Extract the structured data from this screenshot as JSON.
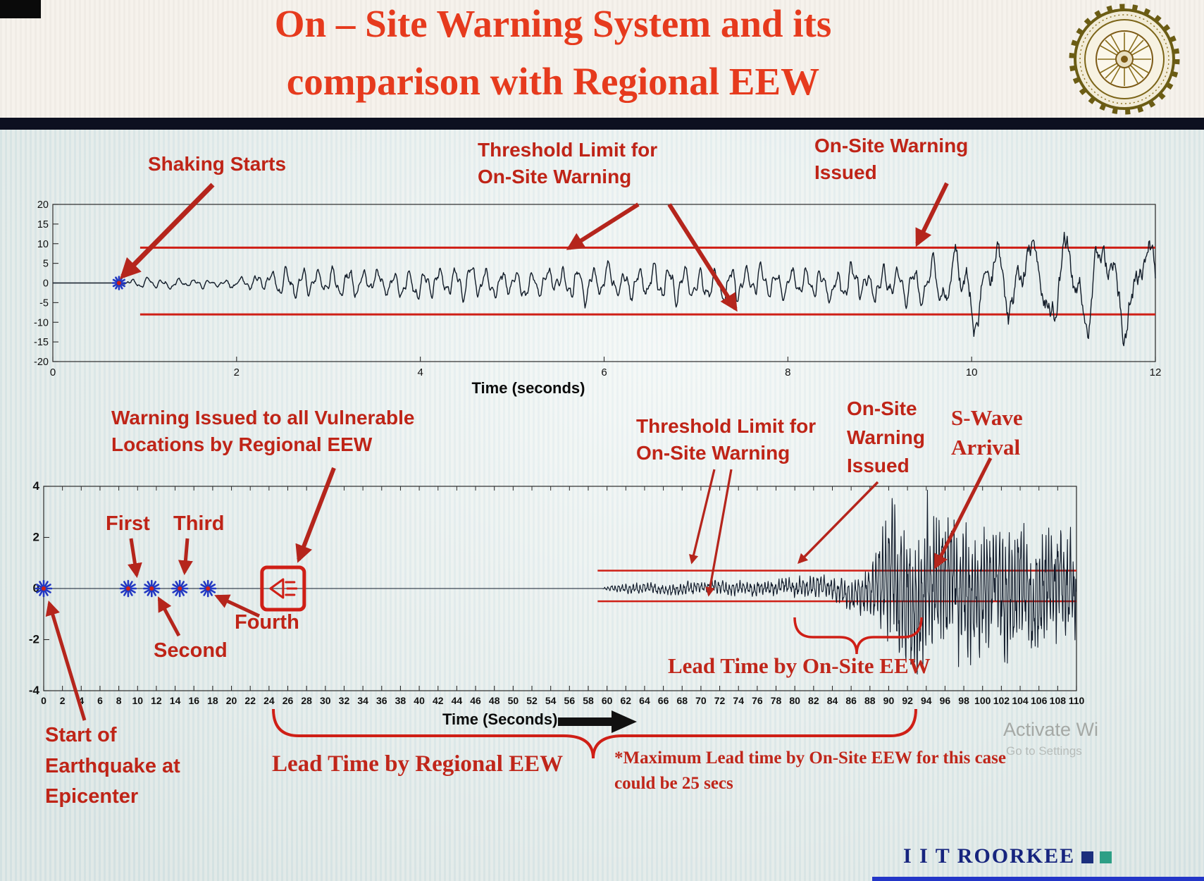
{
  "slide": {
    "title_line1": "On – Site Warning System and its",
    "title_line2": "comparison with Regional EEW",
    "footer_brand": "I I T ROORKEE",
    "watermark_line1": "Activate Wi",
    "watermark_line2": "Go to Settings"
  },
  "annotations": {
    "shaking_starts": "Shaking Starts",
    "threshold_top": "Threshold Limit for\nOn-Site Warning",
    "onsite_warning_top": "On-Site Warning\nIssued",
    "regional_warning": "Warning Issued to all Vulnerable\nLocations by Regional EEW",
    "first": "First",
    "second": "Second",
    "third": "Third",
    "fourth": "Fourth",
    "threshold_bottom": "Threshold Limit for\nOn-Site Warning",
    "onsite_warning_bottom": "On-Site\nWarning\nIssued",
    "s_wave": "S-Wave\nArrival",
    "lead_onsite": "Lead Time by On-Site EEW",
    "lead_regional": "Lead Time by Regional EEW",
    "max_lead_note": "*Maximum Lead time by On-Site EEW for this case\ncould be 25 secs",
    "epicenter": "Start of\nEarthquake at\nEpicenter"
  },
  "chart_data": [
    {
      "type": "line",
      "name": "on-site accelerogram",
      "xlabel": "Time (seconds)",
      "ylabel": "",
      "xlim": [
        0,
        12
      ],
      "xticks": [
        0,
        2,
        4,
        6,
        8,
        10,
        12
      ],
      "ylim": [
        -20,
        20
      ],
      "yticks": [
        20,
        15,
        10,
        5,
        0,
        -5,
        -10,
        -15,
        -20
      ],
      "grid": false,
      "legend": "none",
      "series": [
        {
          "name": "ground shaking",
          "color": "#121c29"
        }
      ],
      "threshold_upper": 9,
      "threshold_lower": -8,
      "threshold_t_range": [
        0.95,
        12
      ],
      "shaking_start_t": 0.72,
      "onsite_warning_issued_t": 9.4,
      "envelope": [
        [
          0,
          0
        ],
        [
          0.7,
          0
        ],
        [
          0.85,
          1.0
        ],
        [
          1.1,
          1.4
        ],
        [
          1.5,
          1.1
        ],
        [
          1.9,
          1.5
        ],
        [
          2.25,
          2.0
        ],
        [
          2.55,
          4.6
        ],
        [
          2.85,
          3.4
        ],
        [
          3.2,
          4.2
        ],
        [
          3.6,
          3.1
        ],
        [
          4.0,
          3.9
        ],
        [
          4.45,
          4.5
        ],
        [
          4.9,
          3.3
        ],
        [
          5.35,
          4.1
        ],
        [
          5.8,
          5.0
        ],
        [
          6.2,
          3.9
        ],
        [
          6.6,
          5.4
        ],
        [
          7.0,
          4.1
        ],
        [
          7.4,
          4.9
        ],
        [
          7.8,
          3.9
        ],
        [
          8.2,
          4.5
        ],
        [
          8.6,
          5.2
        ],
        [
          9.0,
          4.4
        ],
        [
          9.3,
          5.0
        ],
        [
          9.55,
          6.5
        ],
        [
          9.85,
          9.0
        ],
        [
          10.15,
          11.0
        ],
        [
          10.45,
          12.5
        ],
        [
          10.7,
          10.5
        ],
        [
          11.0,
          13.0
        ],
        [
          11.3,
          11.0
        ],
        [
          11.6,
          12.5
        ],
        [
          12,
          12.0
        ]
      ],
      "freq_profile": [
        [
          0,
          6
        ],
        [
          9.3,
          6
        ],
        [
          9.9,
          2.6
        ],
        [
          12,
          2.2
        ]
      ]
    },
    {
      "type": "line",
      "name": "regional seismogram at vulnerable site",
      "xlabel": "Time (Seconds)",
      "ylabel": "",
      "xlim": [
        0,
        110
      ],
      "xticks": [
        0,
        2,
        4,
        6,
        8,
        10,
        12,
        14,
        16,
        18,
        20,
        22,
        24,
        26,
        28,
        30,
        32,
        34,
        36,
        38,
        40,
        42,
        44,
        46,
        48,
        50,
        52,
        54,
        56,
        58,
        60,
        62,
        64,
        66,
        68,
        70,
        72,
        74,
        76,
        78,
        80,
        82,
        84,
        86,
        88,
        90,
        92,
        94,
        96,
        98,
        100,
        102,
        104,
        106,
        108,
        110
      ],
      "ylim": [
        -4,
        4
      ],
      "yticks": [
        4,
        2,
        0,
        -2,
        -4
      ],
      "grid": false,
      "legend": "none",
      "series": [
        {
          "name": "ground shaking",
          "color": "#101a2a"
        }
      ],
      "threshold_upper": 0.7,
      "threshold_lower": -0.5,
      "threshold_t_range": [
        59,
        110
      ],
      "epicenter_t": 0,
      "p_wave_picks": [
        {
          "label": "First",
          "t": 9
        },
        {
          "label": "Second",
          "t": 11.5
        },
        {
          "label": "Third",
          "t": 14.5
        },
        {
          "label": "Fourth",
          "t": 17.5
        }
      ],
      "regional_warning_issued_t": 25.5,
      "onsite_warning_issued_t": 80,
      "s_wave_arrival_t": 94,
      "lead_time_onsite_range": [
        80,
        93.5
      ],
      "lead_time_regional_range": [
        24.5,
        93
      ],
      "max_onsite_lead_secs": 25,
      "envelope": [
        [
          0,
          0
        ],
        [
          59.5,
          0
        ],
        [
          60,
          0.1
        ],
        [
          62,
          0.18
        ],
        [
          64,
          0.22
        ],
        [
          66,
          0.2
        ],
        [
          68,
          0.24
        ],
        [
          70,
          0.22
        ],
        [
          72,
          0.26
        ],
        [
          74,
          0.24
        ],
        [
          76,
          0.28
        ],
        [
          78,
          0.3
        ],
        [
          80,
          0.36
        ],
        [
          82,
          0.42
        ],
        [
          84,
          0.48
        ],
        [
          86,
          0.62
        ],
        [
          87.5,
          0.85
        ],
        [
          88.5,
          1.4
        ],
        [
          89.5,
          2.2
        ],
        [
          90.5,
          2.8
        ],
        [
          91.5,
          2.4
        ],
        [
          92.5,
          2.9
        ],
        [
          93.5,
          2.5
        ],
        [
          94.5,
          2.9
        ],
        [
          95.5,
          2.45
        ],
        [
          96.5,
          2.8
        ],
        [
          97.5,
          2.35
        ],
        [
          98.5,
          2.7
        ],
        [
          99.5,
          2.3
        ],
        [
          100.5,
          2.6
        ],
        [
          101.5,
          2.2
        ],
        [
          102.5,
          2.55
        ],
        [
          103.5,
          2.15
        ],
        [
          104.5,
          2.45
        ],
        [
          105.5,
          2.05
        ],
        [
          106.5,
          2.35
        ],
        [
          107.5,
          2.0
        ],
        [
          108.5,
          2.25
        ],
        [
          110,
          2.0
        ]
      ],
      "freq_profile": [
        [
          0,
          2.4
        ],
        [
          88,
          2.7
        ],
        [
          92,
          3.2
        ],
        [
          110,
          3.0
        ]
      ]
    }
  ]
}
